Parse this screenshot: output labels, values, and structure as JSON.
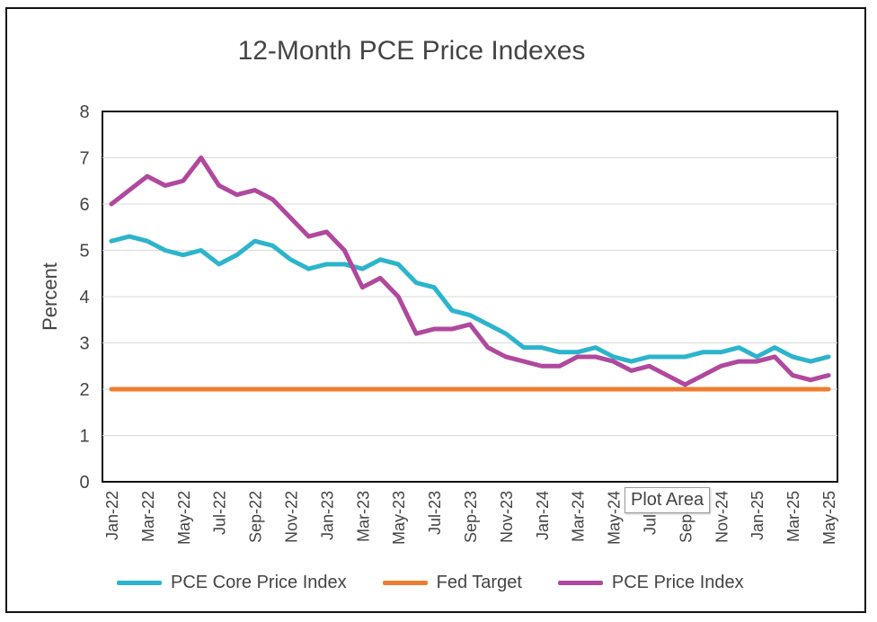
{
  "chart_data": {
    "type": "line",
    "title": "12-Month PCE Price Indexes",
    "ylabel": "Percent",
    "xlabel": "",
    "ylim": [
      0,
      8
    ],
    "yticks": [
      "0",
      "1",
      "2",
      "3",
      "4",
      "5",
      "6",
      "7",
      "8"
    ],
    "grid": "horizontal",
    "legend_position": "bottom",
    "x": [
      "Jan-22",
      "Feb-22",
      "Mar-22",
      "Apr-22",
      "May-22",
      "Jun-22",
      "Jul-22",
      "Aug-22",
      "Sep-22",
      "Oct-22",
      "Nov-22",
      "Dec-22",
      "Jan-23",
      "Feb-23",
      "Mar-23",
      "Apr-23",
      "May-23",
      "Jun-23",
      "Jul-23",
      "Aug-23",
      "Sep-23",
      "Oct-23",
      "Nov-23",
      "Dec-23",
      "Jan-24",
      "Feb-24",
      "Mar-24",
      "Apr-24",
      "May-24",
      "Jun-24",
      "Jul-24",
      "Aug-24",
      "Sep-24",
      "Oct-24",
      "Nov-24",
      "Dec-24",
      "Jan-25",
      "Feb-25",
      "Mar-25",
      "Apr-25",
      "May-25"
    ],
    "tick_labels": [
      "Jan-22",
      "Mar-22",
      "May-22",
      "Jul-22",
      "Sep-22",
      "Nov-22",
      "Jan-23",
      "Mar-23",
      "May-23",
      "Jul-23",
      "Sep-23",
      "Nov-23",
      "Jan-24",
      "Mar-24",
      "May-24",
      "Jul-24",
      "Sep-24",
      "Nov-24",
      "Jan-25",
      "Mar-25",
      "May-25"
    ],
    "series": [
      {
        "name": "PCE Core Price Index",
        "color": "#2cb4cc",
        "values": [
          5.2,
          5.3,
          5.2,
          5.0,
          4.9,
          5.0,
          4.7,
          4.9,
          5.2,
          5.1,
          4.8,
          4.6,
          4.7,
          4.7,
          4.6,
          4.8,
          4.7,
          4.3,
          4.2,
          3.7,
          3.6,
          3.4,
          3.2,
          2.9,
          2.9,
          2.8,
          2.8,
          2.9,
          2.7,
          2.6,
          2.7,
          2.7,
          2.7,
          2.8,
          2.8,
          2.9,
          2.7,
          2.9,
          2.7,
          2.6,
          2.7
        ]
      },
      {
        "name": "Fed Target",
        "color": "#ed7d31",
        "values": [
          2,
          2,
          2,
          2,
          2,
          2,
          2,
          2,
          2,
          2,
          2,
          2,
          2,
          2,
          2,
          2,
          2,
          2,
          2,
          2,
          2,
          2,
          2,
          2,
          2,
          2,
          2,
          2,
          2,
          2,
          2,
          2,
          2,
          2,
          2,
          2,
          2,
          2,
          2,
          2,
          2
        ]
      },
      {
        "name": "PCE Price Index",
        "color": "#b0489e",
        "values": [
          6.0,
          6.3,
          6.6,
          6.4,
          6.5,
          7.0,
          6.4,
          6.2,
          6.3,
          6.1,
          5.7,
          5.3,
          5.4,
          5.0,
          4.2,
          4.4,
          4.0,
          3.2,
          3.3,
          3.3,
          3.4,
          2.9,
          2.7,
          2.6,
          2.5,
          2.5,
          2.7,
          2.7,
          2.6,
          2.4,
          2.5,
          2.3,
          2.1,
          2.3,
          2.5,
          2.6,
          2.6,
          2.7,
          2.3,
          2.2,
          2.3
        ]
      }
    ]
  },
  "tooltip": {
    "text": "Plot Area"
  }
}
